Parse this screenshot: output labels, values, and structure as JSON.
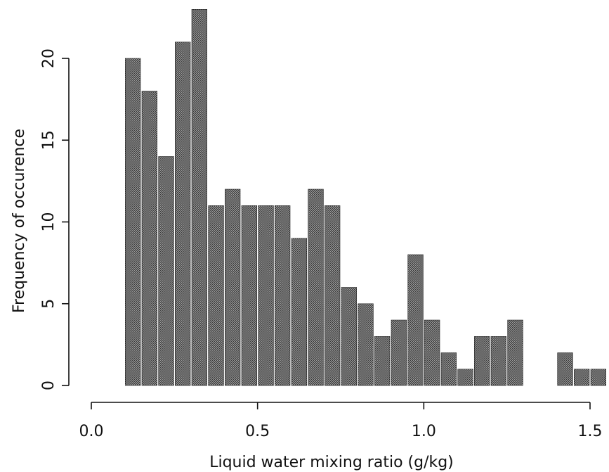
{
  "chart_data": {
    "type": "bar",
    "title": "",
    "xlabel": "Liquid water mixing ratio (g/kg)",
    "ylabel": "Frequency of occurence",
    "xlim": [
      0.0,
      1.5
    ],
    "ylim": [
      0,
      23
    ],
    "bin_width": 0.05,
    "x_ticks": [
      0.0,
      0.5,
      1.0,
      1.5
    ],
    "x_tick_labels": [
      "0.0",
      "0.5",
      "1.0",
      "1.5"
    ],
    "y_ticks": [
      0,
      5,
      10,
      15,
      20
    ],
    "y_tick_labels": [
      "0",
      "5",
      "10",
      "15",
      "20"
    ],
    "grid": false,
    "legend": "none",
    "bar_color": "#707070",
    "series": [
      {
        "x": [
          0.125,
          0.175,
          0.225,
          0.275,
          0.325,
          0.375,
          0.425,
          0.475,
          0.525,
          0.575,
          0.625,
          0.675,
          0.725,
          0.775,
          0.825,
          0.875,
          0.925,
          0.975,
          1.025,
          1.075,
          1.125,
          1.175,
          1.225,
          1.275,
          1.325,
          1.375,
          1.425,
          1.475,
          1.525
        ],
        "values": [
          20,
          18,
          14,
          21,
          23,
          11,
          12,
          11,
          11,
          11,
          9,
          12,
          11,
          6,
          5,
          3,
          4,
          8,
          4,
          2,
          1,
          3,
          3,
          4,
          0,
          0,
          2,
          1,
          1
        ]
      }
    ]
  }
}
